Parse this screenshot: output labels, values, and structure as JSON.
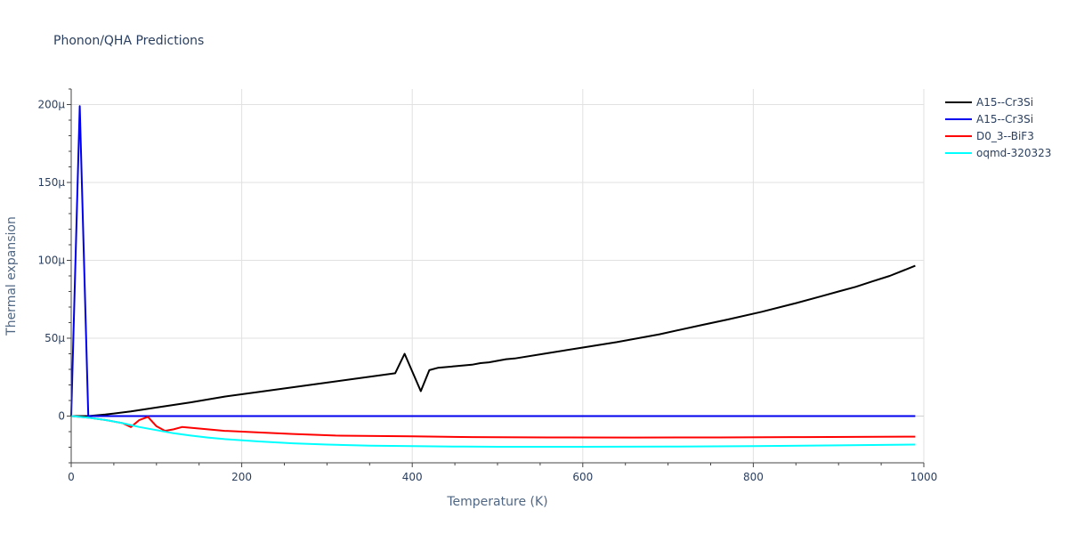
{
  "chart_data": {
    "type": "line",
    "title": "Phonon/QHA Predictions",
    "xlabel": "Temperature (K)",
    "ylabel": "Thermal expansion",
    "xlim": [
      0,
      1000
    ],
    "ylim": [
      -3e-05,
      0.00021
    ],
    "x_ticks": [
      0,
      200,
      400,
      600,
      800,
      1000
    ],
    "x_tick_labels": [
      "0",
      "200",
      "400",
      "600",
      "800",
      "1000"
    ],
    "y_ticks": [
      0,
      5e-05,
      0.0001,
      0.00015,
      0.0002
    ],
    "y_tick_labels": [
      "0",
      "50μ",
      "100μ",
      "150μ",
      "200μ"
    ],
    "grid": true,
    "legend_position": "top-right, outside plot",
    "series": [
      {
        "name": "A15--Cr3Si",
        "color": "#000000",
        "x": [
          0,
          10,
          20,
          40,
          70,
          100,
          140,
          180,
          220,
          260,
          300,
          340,
          380,
          391,
          410,
          420,
          430,
          450,
          470,
          480,
          490,
          510,
          520,
          560,
          600,
          640,
          690,
          740,
          770,
          810,
          850,
          880,
          900,
          920,
          940,
          960,
          990
        ],
        "y": [
          0,
          0,
          0,
          1e-06,
          3e-06,
          5.5e-06,
          8.8e-06,
          1.25e-05,
          1.55e-05,
          1.85e-05,
          2.15e-05,
          2.45e-05,
          2.75e-05,
          4e-05,
          1.6e-05,
          2.95e-05,
          3.1e-05,
          3.2e-05,
          3.3e-05,
          3.4e-05,
          3.45e-05,
          3.65e-05,
          3.7e-05,
          4.05e-05,
          4.4e-05,
          4.75e-05,
          5.25e-05,
          5.85e-05,
          6.2e-05,
          6.7e-05,
          7.25e-05,
          7.7e-05,
          8e-05,
          8.3e-05,
          8.65e-05,
          9e-05,
          9.65e-05
        ]
      },
      {
        "name": "A15--Cr3Si",
        "color": "#0000ee",
        "x": [
          0,
          10,
          20,
          40,
          100,
          200,
          400,
          600,
          800,
          990
        ],
        "y": [
          0,
          0.000199,
          0,
          0,
          0,
          0,
          0,
          0,
          0,
          0
        ]
      },
      {
        "name": "D0_3--BiF3",
        "color": "#ff0000",
        "x": [
          0,
          20,
          40,
          60,
          70,
          80,
          90,
          100,
          110,
          120,
          130,
          140,
          160,
          180,
          220,
          260,
          310,
          400,
          470,
          560,
          660,
          760,
          860,
          990
        ],
        "y": [
          0,
          -1e-06,
          -2.5e-06,
          -4.5e-06,
          -7e-06,
          -2.5e-06,
          -5e-07,
          -6.5e-06,
          -9.5e-06,
          -8.5e-06,
          -7e-06,
          -7.5e-06,
          -8.5e-06,
          -9.5e-06,
          -1.05e-05,
          -1.15e-05,
          -1.25e-05,
          -1.3e-05,
          -1.35e-05,
          -1.37e-05,
          -1.38e-05,
          -1.37e-05,
          -1.35e-05,
          -1.32e-05
        ]
      },
      {
        "name": "oqmd-320323",
        "color": "#00ffff",
        "x": [
          0,
          20,
          40,
          60,
          80,
          100,
          120,
          140,
          160,
          180,
          220,
          260,
          300,
          350,
          400,
          460,
          500,
          560,
          600,
          700,
          800,
          900,
          990
        ],
        "y": [
          0,
          -1e-06,
          -2.5e-06,
          -4.5e-06,
          -7e-06,
          -9e-06,
          -1.1e-05,
          -1.25e-05,
          -1.38e-05,
          -1.48e-05,
          -1.63e-05,
          -1.75e-05,
          -1.83e-05,
          -1.9e-05,
          -1.93e-05,
          -1.96e-05,
          -1.97e-05,
          -1.97e-05,
          -1.97e-05,
          -1.96e-05,
          -1.93e-05,
          -1.88e-05,
          -1.83e-05
        ]
      }
    ]
  }
}
